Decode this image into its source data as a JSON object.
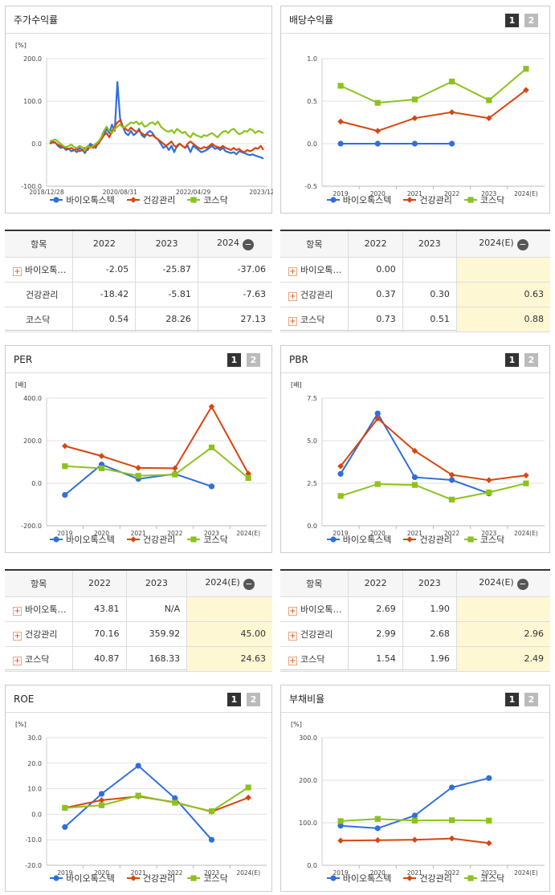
{
  "legend_names": [
    "바이오톡스텍",
    "건강관리",
    "코스닥"
  ],
  "colors": {
    "s0": "#2f6fdc",
    "s1": "#d8450f",
    "s2": "#8cc21e"
  },
  "page_buttons": [
    "1",
    "2"
  ],
  "panels": {
    "price": {
      "title": "주가수익률"
    },
    "div": {
      "title": "배당수익률"
    },
    "per": {
      "title": "PER"
    },
    "pbr": {
      "title": "PBR"
    },
    "roe": {
      "title": "ROE"
    },
    "debt": {
      "title": "부채비율"
    }
  },
  "tables": {
    "price": {
      "header": [
        "항목",
        "2022",
        "2023",
        "2024"
      ],
      "rows": [
        {
          "name": "바이오톡…",
          "v": [
            "-2.05",
            "-25.87",
            "-37.06"
          ]
        },
        {
          "name": "건강관리",
          "v": [
            "-18.42",
            "-5.81",
            "-7.63"
          ]
        },
        {
          "name": "코스닥",
          "v": [
            "0.54",
            "28.26",
            "27.13"
          ]
        }
      ]
    },
    "div": {
      "header": [
        "항목",
        "2022",
        "2023",
        "2024(E)"
      ],
      "rows": [
        {
          "name": "바이오톡…",
          "v": [
            "0.00",
            "",
            ""
          ]
        },
        {
          "name": "건강관리",
          "v": [
            "0.37",
            "0.30",
            "0.63"
          ]
        },
        {
          "name": "코스닥",
          "v": [
            "0.73",
            "0.51",
            "0.88"
          ]
        }
      ]
    },
    "per": {
      "header": [
        "항목",
        "2022",
        "2023",
        "2024(E)"
      ],
      "rows": [
        {
          "name": "바이오톡…",
          "v": [
            "43.81",
            "N/A",
            ""
          ]
        },
        {
          "name": "건강관리",
          "v": [
            "70.16",
            "359.92",
            "45.00"
          ]
        },
        {
          "name": "코스닥",
          "v": [
            "40.87",
            "168.33",
            "24.63"
          ]
        }
      ]
    },
    "pbr": {
      "header": [
        "항목",
        "2022",
        "2023",
        "2024(E)"
      ],
      "rows": [
        {
          "name": "바이오톡…",
          "v": [
            "2.69",
            "1.90",
            ""
          ]
        },
        {
          "name": "건강관리",
          "v": [
            "2.99",
            "2.68",
            "2.96"
          ]
        },
        {
          "name": "코스닥",
          "v": [
            "1.54",
            "1.96",
            "2.49"
          ]
        }
      ]
    }
  },
  "chart_data": [
    {
      "id": "price",
      "type": "line",
      "title": "주가수익률",
      "unit": "[%]",
      "ylim": [
        -100,
        200
      ],
      "yticks": [
        "200.0",
        "100.0",
        "0.0",
        "-100.0"
      ],
      "xlabels": [
        "2018/12/28",
        "2020/08/31",
        "2022/04/29",
        "2023/12/28"
      ],
      "series": [
        {
          "name": "바이오톡스텍",
          "values": [
            0,
            5,
            3,
            -5,
            -10,
            -8,
            -15,
            -12,
            -18,
            -15,
            -20,
            -10,
            -15,
            -22,
            -10,
            0,
            -5,
            -10,
            5,
            10,
            20,
            35,
            25,
            45,
            30,
            145,
            60,
            40,
            25,
            20,
            30,
            20,
            25,
            35,
            20,
            15,
            25,
            30,
            25,
            15,
            10,
            0,
            -10,
            -5,
            -15,
            -5,
            -20,
            -5,
            0,
            -5,
            -10,
            -5,
            -20,
            -5,
            -10,
            -15,
            -20,
            -18,
            -15,
            -10,
            -5,
            -12,
            -10,
            -15,
            -10,
            -18,
            -20,
            -22,
            -20,
            -25,
            -18,
            -20,
            -22,
            -25,
            -27,
            -25,
            -28,
            -30,
            -32,
            -35
          ]
        },
        {
          "name": "건강관리",
          "values": [
            0,
            3,
            2,
            -2,
            -5,
            -8,
            -10,
            -12,
            -10,
            -15,
            -12,
            -18,
            -15,
            -10,
            -15,
            -5,
            -10,
            -5,
            0,
            10,
            20,
            25,
            15,
            30,
            40,
            50,
            55,
            40,
            35,
            30,
            38,
            32,
            28,
            30,
            25,
            20,
            22,
            18,
            20,
            15,
            10,
            5,
            0,
            -5,
            0,
            5,
            -5,
            -8,
            0,
            -5,
            -10,
            0,
            5,
            0,
            -5,
            -10,
            -12,
            -8,
            -10,
            -5,
            0,
            -5,
            -8,
            -10,
            -5,
            -10,
            -12,
            -15,
            -10,
            -15,
            -12,
            -18,
            -20,
            -15,
            -18,
            -15,
            -10,
            -12,
            -5,
            -15
          ]
        },
        {
          "name": "코스닥",
          "values": [
            5,
            8,
            10,
            5,
            0,
            -5,
            -8,
            -5,
            -2,
            -8,
            -10,
            -5,
            -8,
            -15,
            -5,
            -10,
            -5,
            0,
            5,
            15,
            30,
            40,
            30,
            25,
            35,
            40,
            45,
            38,
            40,
            45,
            50,
            48,
            52,
            45,
            50,
            40,
            42,
            48,
            50,
            45,
            52,
            40,
            35,
            30,
            28,
            32,
            25,
            35,
            30,
            25,
            28,
            20,
            15,
            25,
            20,
            18,
            15,
            20,
            18,
            22,
            25,
            20,
            15,
            22,
            28,
            30,
            25,
            32,
            35,
            28,
            22,
            25,
            30,
            28,
            35,
            32,
            25,
            30,
            28,
            25
          ]
        }
      ]
    },
    {
      "id": "div",
      "type": "line",
      "title": "배당수익률",
      "ylim": [
        -0.5,
        1.0
      ],
      "yticks": [
        "1.0",
        "0.5",
        "0.0",
        "-0.5"
      ],
      "x": [
        "2019",
        "2020",
        "2021",
        "2022",
        "2023",
        "2024(E)"
      ],
      "series": [
        {
          "name": "바이오톡스텍",
          "values": [
            0.0,
            0.0,
            0.0,
            0.0,
            null,
            null
          ]
        },
        {
          "name": "건강관리",
          "values": [
            0.26,
            0.15,
            0.3,
            0.37,
            0.3,
            0.63
          ]
        },
        {
          "name": "코스닥",
          "values": [
            0.68,
            0.48,
            0.52,
            0.73,
            0.51,
            0.88
          ]
        }
      ]
    },
    {
      "id": "per",
      "type": "line",
      "title": "PER",
      "unit": "[배]",
      "ylim": [
        -200,
        400
      ],
      "yticks": [
        "400.0",
        "200.0",
        "0.0",
        "-200.0"
      ],
      "x": [
        "2019",
        "2020",
        "2021",
        "2022",
        "2023",
        "2024(E)"
      ],
      "series": [
        {
          "name": "바이오톡스텍",
          "values": [
            -55,
            88,
            20,
            43.81,
            -15,
            null
          ]
        },
        {
          "name": "건강관리",
          "values": [
            175,
            128,
            72,
            70.16,
            359.92,
            45.0
          ]
        },
        {
          "name": "코스닥",
          "values": [
            80,
            70,
            35,
            40.87,
            168.33,
            24.63
          ]
        }
      ]
    },
    {
      "id": "pbr",
      "type": "line",
      "title": "PBR",
      "unit": "[배]",
      "ylim": [
        0,
        7.5
      ],
      "yticks": [
        "7.5",
        "5.0",
        "2.5",
        "0.0"
      ],
      "x": [
        "2019",
        "2020",
        "2021",
        "2022",
        "2023",
        "2024(E)"
      ],
      "series": [
        {
          "name": "바이오톡스텍",
          "values": [
            3.05,
            6.6,
            2.85,
            2.69,
            1.9,
            null
          ]
        },
        {
          "name": "건강관리",
          "values": [
            3.5,
            6.3,
            4.4,
            2.99,
            2.68,
            2.96
          ]
        },
        {
          "name": "코스닥",
          "values": [
            1.75,
            2.45,
            2.4,
            1.54,
            1.96,
            2.49
          ]
        }
      ]
    },
    {
      "id": "roe",
      "type": "line",
      "title": "ROE",
      "unit": "[%]",
      "ylim": [
        -20,
        30
      ],
      "yticks": [
        "30.0",
        "20.0",
        "10.0",
        "0.0",
        "-10.0",
        "-20.0"
      ],
      "x": [
        "2019",
        "2020",
        "2021",
        "2022",
        "2023",
        "2024(E)"
      ],
      "series": [
        {
          "name": "바이오톡스텍",
          "values": [
            -5,
            8,
            19,
            6.3,
            -10,
            null
          ]
        },
        {
          "name": "건강관리",
          "values": [
            2.5,
            5.5,
            7,
            4.7,
            1,
            6.5
          ]
        },
        {
          "name": "코스닥",
          "values": [
            2.5,
            3.5,
            7.3,
            4.5,
            1.2,
            10.5
          ]
        }
      ]
    },
    {
      "id": "debt",
      "type": "line",
      "title": "부채비율",
      "unit": "[%]",
      "ylim": [
        0,
        300
      ],
      "yticks": [
        "300.0",
        "200.0",
        "100.0",
        "0.0"
      ],
      "x": [
        "2019",
        "2020",
        "2021",
        "2022",
        "2023",
        "2024(E)"
      ],
      "series": [
        {
          "name": "바이오톡스텍",
          "values": [
            93,
            87,
            117,
            183,
            205,
            null
          ]
        },
        {
          "name": "건강관리",
          "values": [
            58,
            59,
            60,
            63,
            52,
            null
          ]
        },
        {
          "name": "코스닥",
          "values": [
            104,
            109,
            105,
            106,
            105,
            null
          ]
        }
      ]
    }
  ]
}
